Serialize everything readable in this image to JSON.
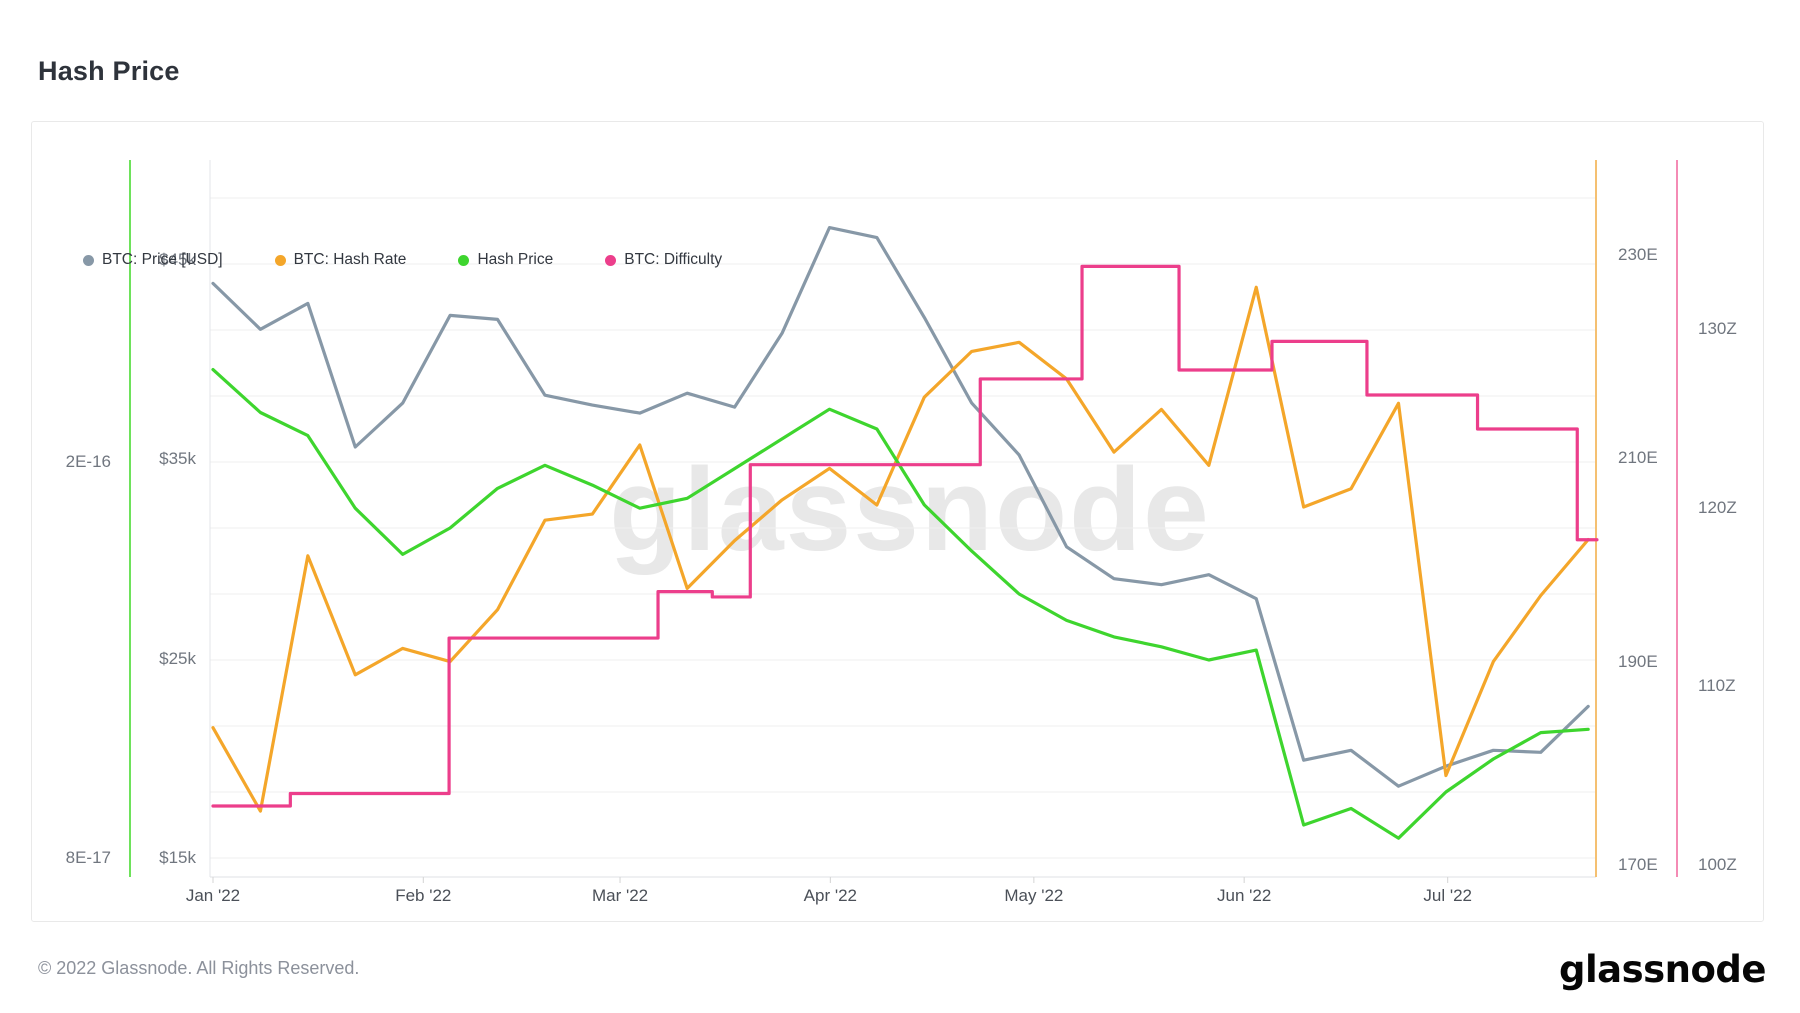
{
  "title": "Hash Price",
  "footer": {
    "copyright": "© 2022 Glassnode. All Rights Reserved.",
    "logo_text": "glassnode"
  },
  "chart_data": {
    "type": "line",
    "title": "Hash Price",
    "watermark": "glassnode",
    "legend_position": "top-left",
    "grid": "horizontal-faint",
    "x_axis": {
      "unit": "date",
      "start": "2022-01-01",
      "end": "2022-07-24",
      "month_labels": [
        "Jan '22",
        "Feb '22",
        "Mar '22",
        "Apr '22",
        "May '22",
        "Jun '22",
        "Jul '22"
      ],
      "month_day_offsets": [
        0,
        31,
        60,
        91,
        121,
        152,
        182
      ]
    },
    "axes": {
      "price_usd": {
        "side": "left-inner",
        "unit": "USD",
        "scale": "linear",
        "axis_line_color": "none",
        "ticks": [
          {
            "label": "$45k",
            "value": 45000
          },
          {
            "label": "$35k",
            "value": 35000
          },
          {
            "label": "$25k",
            "value": 25000
          },
          {
            "label": "$15k",
            "value": 15000
          }
        ]
      },
      "hash_price": {
        "side": "left-outer",
        "unit": "USD per hash",
        "scale": "linear",
        "axis_line_color": "#6ee25b",
        "ticks": [
          {
            "label": "2E-16",
            "value": 2e-16
          },
          {
            "label": "8E-17",
            "value": 8e-17
          }
        ]
      },
      "hash_rate": {
        "side": "right-inner",
        "unit": "EH/s",
        "scale": "linear",
        "axis_line_color": "#f5c071",
        "ticks": [
          {
            "label": "230E",
            "value": 230
          },
          {
            "label": "210E",
            "value": 210
          },
          {
            "label": "190E",
            "value": 190
          },
          {
            "label": "170E",
            "value": 170
          }
        ]
      },
      "difficulty": {
        "side": "right-outer",
        "unit": "zettahashes",
        "scale": "linear",
        "axis_line_color": "#f48bb5",
        "ticks": [
          {
            "label": "130Z",
            "value": 130
          },
          {
            "label": "120Z",
            "value": 120
          },
          {
            "label": "110Z",
            "value": 110
          },
          {
            "label": "100Z",
            "value": 100
          }
        ]
      }
    },
    "series": [
      {
        "name": "BTC: Price [USD]",
        "color": "#8798a7",
        "axis": "price_usd",
        "sample_interval": "weekly",
        "values": [
          43800,
          41500,
          42800,
          35600,
          37800,
          42200,
          42000,
          38200,
          37700,
          37300,
          38300,
          37600,
          41300,
          46600,
          46100,
          42100,
          37800,
          35200,
          30600,
          29000,
          28700,
          29200,
          28000,
          19900,
          20400,
          18600,
          19600,
          20400,
          20300,
          22600
        ]
      },
      {
        "name": "BTC: Hash Rate",
        "color": "#f4a62a",
        "axis": "hash_rate",
        "sample_interval": "weekly",
        "values": [
          183.5,
          175.3,
          200.4,
          188.7,
          191.3,
          190.0,
          195.1,
          203.9,
          204.5,
          211.3,
          197.2,
          201.9,
          205.9,
          209.0,
          205.4,
          216.0,
          220.5,
          221.4,
          217.8,
          210.6,
          214.8,
          209.3,
          226.8,
          205.2,
          207.0,
          215.4,
          178.8,
          190.0,
          196.5,
          202.0
        ]
      },
      {
        "name": "Hash Price",
        "color": "#3ed52e",
        "axis": "hash_price",
        "sample_interval": "weekly",
        "values": [
          2.28e-16,
          2.15e-16,
          2.08e-16,
          1.86e-16,
          1.72e-16,
          1.8e-16,
          1.92e-16,
          1.99e-16,
          1.93e-16,
          1.86e-16,
          1.89e-16,
          1.98e-16,
          2.07e-16,
          2.16e-16,
          2.1e-16,
          1.87e-16,
          1.73e-16,
          1.6e-16,
          1.52e-16,
          1.47e-16,
          1.44e-16,
          1.4e-16,
          1.43e-16,
          9e-17,
          9.5e-17,
          8.6e-17,
          1e-16,
          1.1e-16,
          1.18e-16,
          1.19e-16
        ]
      },
      {
        "name": "BTC: Difficulty",
        "color": "#ec3e8b",
        "axis": "difficulty",
        "style": "step",
        "segments": [
          {
            "from_day": 0,
            "to_day": 11.4,
            "value": 103.3
          },
          {
            "from_day": 11.4,
            "to_day": 34.8,
            "value": 104.0
          },
          {
            "from_day": 34.8,
            "to_day": 65.6,
            "value": 112.7
          },
          {
            "from_day": 65.6,
            "to_day": 73.6,
            "value": 115.3
          },
          {
            "from_day": 73.6,
            "to_day": 79.2,
            "value": 115.0
          },
          {
            "from_day": 79.2,
            "to_day": 113.1,
            "value": 122.4
          },
          {
            "from_day": 113.1,
            "to_day": 128.1,
            "value": 127.2
          },
          {
            "from_day": 128.1,
            "to_day": 142.4,
            "value": 133.5
          },
          {
            "from_day": 142.4,
            "to_day": 156.1,
            "value": 127.7
          },
          {
            "from_day": 156.1,
            "to_day": 170.1,
            "value": 129.3
          },
          {
            "from_day": 170.1,
            "to_day": 186.4,
            "value": 126.3
          },
          {
            "from_day": 186.4,
            "to_day": 201.1,
            "value": 124.4
          },
          {
            "from_day": 201.1,
            "to_day": 204.0,
            "value": 118.2
          }
        ]
      }
    ]
  }
}
